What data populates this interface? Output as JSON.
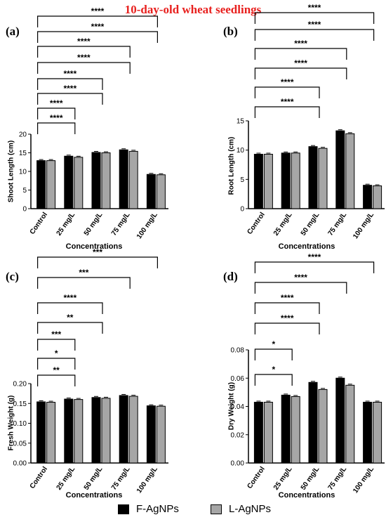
{
  "figure_title": "10-day-old wheat seedlings",
  "colors": {
    "title": "#e8201e",
    "f_agnps": "#000000",
    "l_agnps": "#a6a6a6"
  },
  "legend": {
    "items": [
      "F-AgNPs",
      "L-AgNPs"
    ]
  },
  "chart_data": [
    {
      "panel_label": "(a)",
      "type": "bar",
      "categories": [
        "Control",
        "25 mg/L",
        "50 mg/L",
        "75 mg/L",
        "100 mg/L"
      ],
      "series": [
        {
          "name": "F-AgNPs",
          "values": [
            12.9,
            14.1,
            15.1,
            15.8,
            9.2
          ]
        },
        {
          "name": "L-AgNPs",
          "values": [
            12.9,
            13.8,
            15.0,
            15.4,
            9.1
          ]
        }
      ],
      "xlabel": "Concentrations",
      "ylabel": "Shoot Length (cm)",
      "ylim": [
        0,
        20
      ],
      "yticks": [
        "0",
        "5",
        "10",
        "15",
        "20"
      ],
      "significance": [
        "****",
        "****",
        "****",
        "****",
        "****",
        "****",
        "****",
        "****"
      ]
    },
    {
      "panel_label": "(b)",
      "type": "bar",
      "categories": [
        "Control",
        "25 mg/L",
        "50 mg/L",
        "75 mg/L",
        "100 mg/L"
      ],
      "series": [
        {
          "name": "F-AgNPs",
          "values": [
            9.3,
            9.5,
            10.6,
            13.3,
            4.0
          ]
        },
        {
          "name": "L-AgNPs",
          "values": [
            9.3,
            9.5,
            10.3,
            12.8,
            3.9
          ]
        }
      ],
      "xlabel": "Concentrations",
      "ylabel": "Root Length (cm)",
      "ylim": [
        0,
        15
      ],
      "yticks": [
        "0",
        "5",
        "10",
        "15"
      ],
      "significance": [
        "****",
        "****",
        "****",
        "****",
        "****",
        "****"
      ]
    },
    {
      "panel_label": "(c)",
      "type": "bar",
      "categories": [
        "Control",
        "25 mg/L",
        "50 mg/L",
        "75 mg/L",
        "100 mg/L"
      ],
      "series": [
        {
          "name": "F-AgNPs",
          "values": [
            0.154,
            0.161,
            0.165,
            0.17,
            0.144
          ]
        },
        {
          "name": "L-AgNPs",
          "values": [
            0.153,
            0.16,
            0.163,
            0.168,
            0.143
          ]
        }
      ],
      "xlabel": "Concentrations",
      "ylabel": "Fresh Weight (g)",
      "ylim": [
        0,
        0.2
      ],
      "yticks": [
        "0.00",
        "0.05",
        "0.10",
        "0.15",
        "0.20"
      ],
      "significance": [
        "**",
        "*",
        "***",
        "**",
        "****",
        "***",
        "***"
      ]
    },
    {
      "panel_label": "(d)",
      "type": "bar",
      "categories": [
        "Control",
        "25 mg/L",
        "50 mg/L",
        "75 mg/L",
        "100 mg/L"
      ],
      "series": [
        {
          "name": "F-AgNPs",
          "values": [
            0.043,
            0.048,
            0.057,
            0.06,
            0.043
          ]
        },
        {
          "name": "L-AgNPs",
          "values": [
            0.043,
            0.047,
            0.052,
            0.055,
            0.043
          ]
        }
      ],
      "xlabel": "Concentrations",
      "ylabel": "Dry Weight (g)",
      "ylim": [
        0,
        0.08
      ],
      "yticks": [
        "0.00",
        "0.02",
        "0.04",
        "0.06",
        "0.08"
      ],
      "significance": [
        "*",
        "*",
        "****",
        "****",
        "****",
        "****"
      ]
    }
  ]
}
